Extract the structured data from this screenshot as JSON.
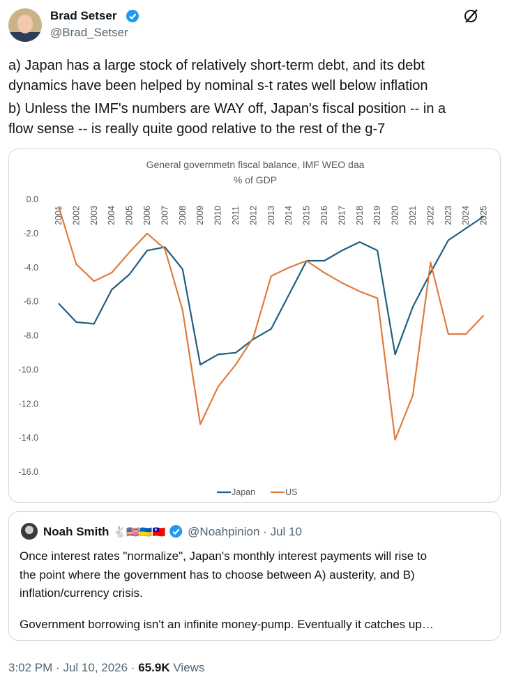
{
  "tweet": {
    "name": "Brad Setser",
    "handle": "@Brad_Setser",
    "text": [
      "a) Japan has a large stock of relatively short-term debt, and its debt",
      "dynamics have been helped by nominal s-t rates well below inflation",
      "b) Unless the IMF's numbers are WAY off, Japan's fiscal position -- in a",
      "flow sense -- is really quite good relative to the rest of the g-7"
    ]
  },
  "chart_data": {
    "type": "line",
    "title": "General governmetn fiscal balance, IMF WEO daa",
    "subtitle": "% of GDP",
    "categories": [
      "2001",
      "2002",
      "2003",
      "2004",
      "2005",
      "2006",
      "2007",
      "2008",
      "2009",
      "2010",
      "2011",
      "2012",
      "2013",
      "2014",
      "2015",
      "2016",
      "2017",
      "2018",
      "2019",
      "2020",
      "2021",
      "2022",
      "2023",
      "2024",
      "2025"
    ],
    "series": [
      {
        "name": "Japan",
        "color": "#1f5f7f",
        "values": [
          -6.1,
          -7.2,
          -7.3,
          -5.3,
          -4.4,
          -3.0,
          -2.8,
          -4.1,
          -9.7,
          -9.1,
          -9.0,
          -8.2,
          -7.6,
          -5.6,
          -3.6,
          -3.6,
          -3.0,
          -2.5,
          -3.0,
          -9.1,
          -6.3,
          -4.3,
          -2.4,
          -1.7,
          -1.0
        ]
      },
      {
        "name": "US",
        "color": "#e07b39",
        "values": [
          -0.4,
          -3.8,
          -4.8,
          -4.3,
          -3.1,
          -2.0,
          -2.9,
          -6.5,
          -13.2,
          -11.0,
          -9.7,
          -8.1,
          -4.5,
          -4.0,
          -3.6,
          -4.3,
          -4.9,
          -5.4,
          -5.8,
          -14.1,
          -11.5,
          -3.7,
          -7.9,
          -7.9,
          -6.8
        ]
      }
    ],
    "ylim": [
      -16,
      0
    ],
    "yticks": [
      {
        "value": 0,
        "label": "0.0"
      },
      {
        "value": -2,
        "label": "-2.0"
      },
      {
        "value": -4,
        "label": "-4.0"
      },
      {
        "value": -6,
        "label": "-6.0"
      },
      {
        "value": -8,
        "label": "-8.0"
      },
      {
        "value": -10,
        "label": "-10.0"
      },
      {
        "value": -12,
        "label": "-12.0"
      },
      {
        "value": -14,
        "label": "-14.0"
      },
      {
        "value": -16,
        "label": "-16.0"
      }
    ],
    "grid": false,
    "legend": "bottom"
  },
  "quote": {
    "name": "Noah Smith",
    "emoji": "🐇🇺🇸🇺🇦🇹🇼",
    "handle": "@Noahpinion",
    "date": "Jul 10",
    "text": [
      "Once interest rates \"normalize\", Japan's monthly interest payments will rise to",
      "the point where the government has to choose between A) austerity, and B)",
      "inflation/currency crisis.",
      "Government borrowing isn't an infinite money-pump. Eventually it catches up…"
    ]
  },
  "footer": {
    "separator": "·",
    "time": "3:02 PM",
    "date": "Jul 10, 2026",
    "views": "65.9K",
    "views_label": "Views"
  }
}
